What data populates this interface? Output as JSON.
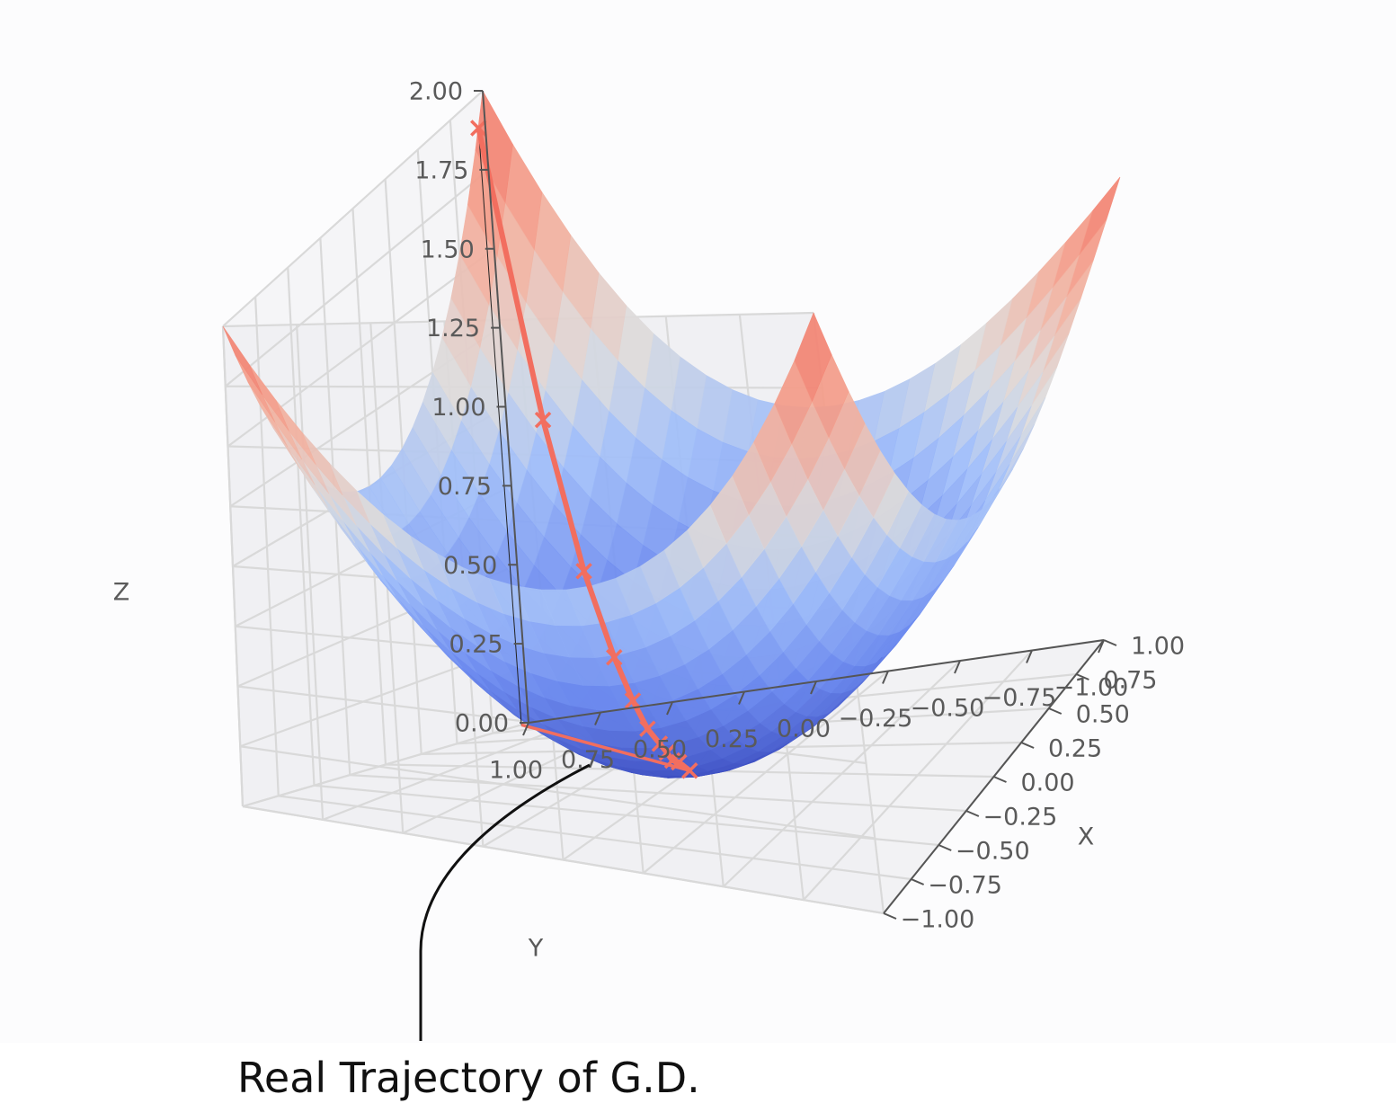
{
  "chart_data": {
    "type": "surface3d",
    "title": "",
    "xlabel": "X",
    "ylabel": "Y",
    "zlabel": "Z",
    "x_ticks": [
      "−1.00",
      "−0.75",
      "−0.50",
      "−0.25",
      "0.00",
      "0.25",
      "0.50",
      "0.75",
      "1.00"
    ],
    "y_ticks": [
      "1.00",
      "0.75",
      "0.50",
      "0.25",
      "0.00",
      "−0.25",
      "−0.50",
      "−0.75",
      "−1.00"
    ],
    "z_ticks": [
      "0.00",
      "0.25",
      "0.50",
      "0.75",
      "1.00",
      "1.25",
      "1.50",
      "1.75",
      "2.00"
    ],
    "xlim": [
      -1,
      1
    ],
    "ylim": [
      -1,
      1
    ],
    "zlim": [
      0,
      2
    ],
    "surface": "z = x^2 + y^2",
    "colormap": "coolwarm",
    "grid": true,
    "trajectory": {
      "color": "#f26e5f",
      "marker": "x",
      "points": [
        {
          "x": 0.95,
          "y": 1.0,
          "z": 1.9
        },
        {
          "x": 0.7,
          "y": 0.74,
          "z": 1.04
        },
        {
          "x": 0.52,
          "y": 0.55,
          "z": 0.57
        },
        {
          "x": 0.38,
          "y": 0.4,
          "z": 0.3
        },
        {
          "x": 0.28,
          "y": 0.3,
          "z": 0.17
        },
        {
          "x": 0.2,
          "y": 0.22,
          "z": 0.09
        },
        {
          "x": 0.15,
          "y": 0.16,
          "z": 0.05
        },
        {
          "x": 0.11,
          "y": 0.12,
          "z": 0.03
        },
        {
          "x": 0.08,
          "y": 0.09,
          "z": 0.01
        },
        {
          "x": 0.06,
          "y": 0.06,
          "z": 0.01
        },
        {
          "x": 0.0,
          "y": 0.0,
          "z": 0.0
        }
      ]
    }
  },
  "annotation": {
    "text": "Real Trajectory of G.D."
  },
  "colors": {
    "low": "#3b4cc0",
    "mid": "#dddddd",
    "high": "#f26e5f",
    "grid": "#d9d9d9",
    "trajectory": "#f26e5f"
  }
}
